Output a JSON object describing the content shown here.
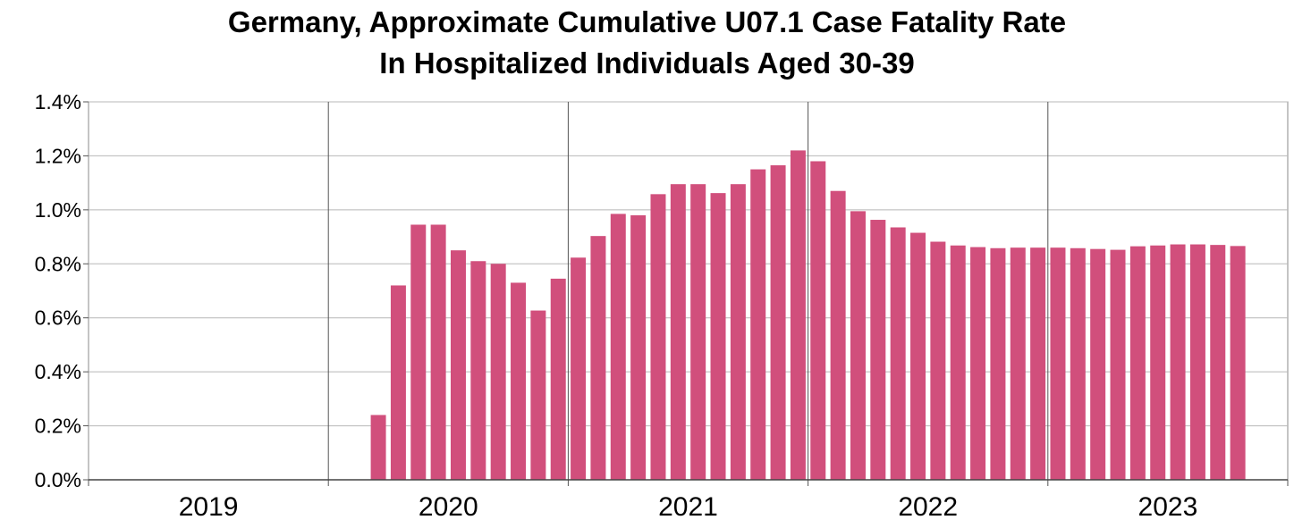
{
  "chart_data": {
    "type": "bar",
    "title_lines": [
      "Germany, Approximate Cumulative U07.1 Case Fatality Rate",
      "In Hospitalized Individuals Aged 30-39"
    ],
    "xlabel": "",
    "ylabel": "",
    "ylim": [
      0,
      1.4
    ],
    "y_ticks": [
      "0.0%",
      "0.2%",
      "0.4%",
      "0.6%",
      "0.8%",
      "1.0%",
      "1.2%",
      "1.4%"
    ],
    "x_tick_labels": [
      "2019",
      "2020",
      "2021",
      "2022",
      "2023"
    ],
    "grid": true,
    "bar_color": "#d14f7c",
    "months_per_year": 12,
    "series": [
      {
        "values": [
          0,
          0,
          0,
          0,
          0,
          0,
          0,
          0,
          0,
          0,
          0,
          0,
          0,
          0,
          0.24,
          0.72,
          0.945,
          0.945,
          0.85,
          0.81,
          0.8,
          0.73,
          0.627,
          0.745,
          0.823,
          0.903,
          0.985,
          0.98,
          1.058,
          1.095,
          1.095,
          1.062,
          1.095,
          1.15,
          1.165,
          1.22,
          1.18,
          1.07,
          0.995,
          0.963,
          0.935,
          0.915,
          0.882,
          0.868,
          0.862,
          0.858,
          0.86,
          0.86,
          0.86,
          0.858,
          0.855,
          0.852,
          0.865,
          0.868,
          0.872,
          0.872,
          0.87,
          0.866
        ]
      }
    ]
  }
}
